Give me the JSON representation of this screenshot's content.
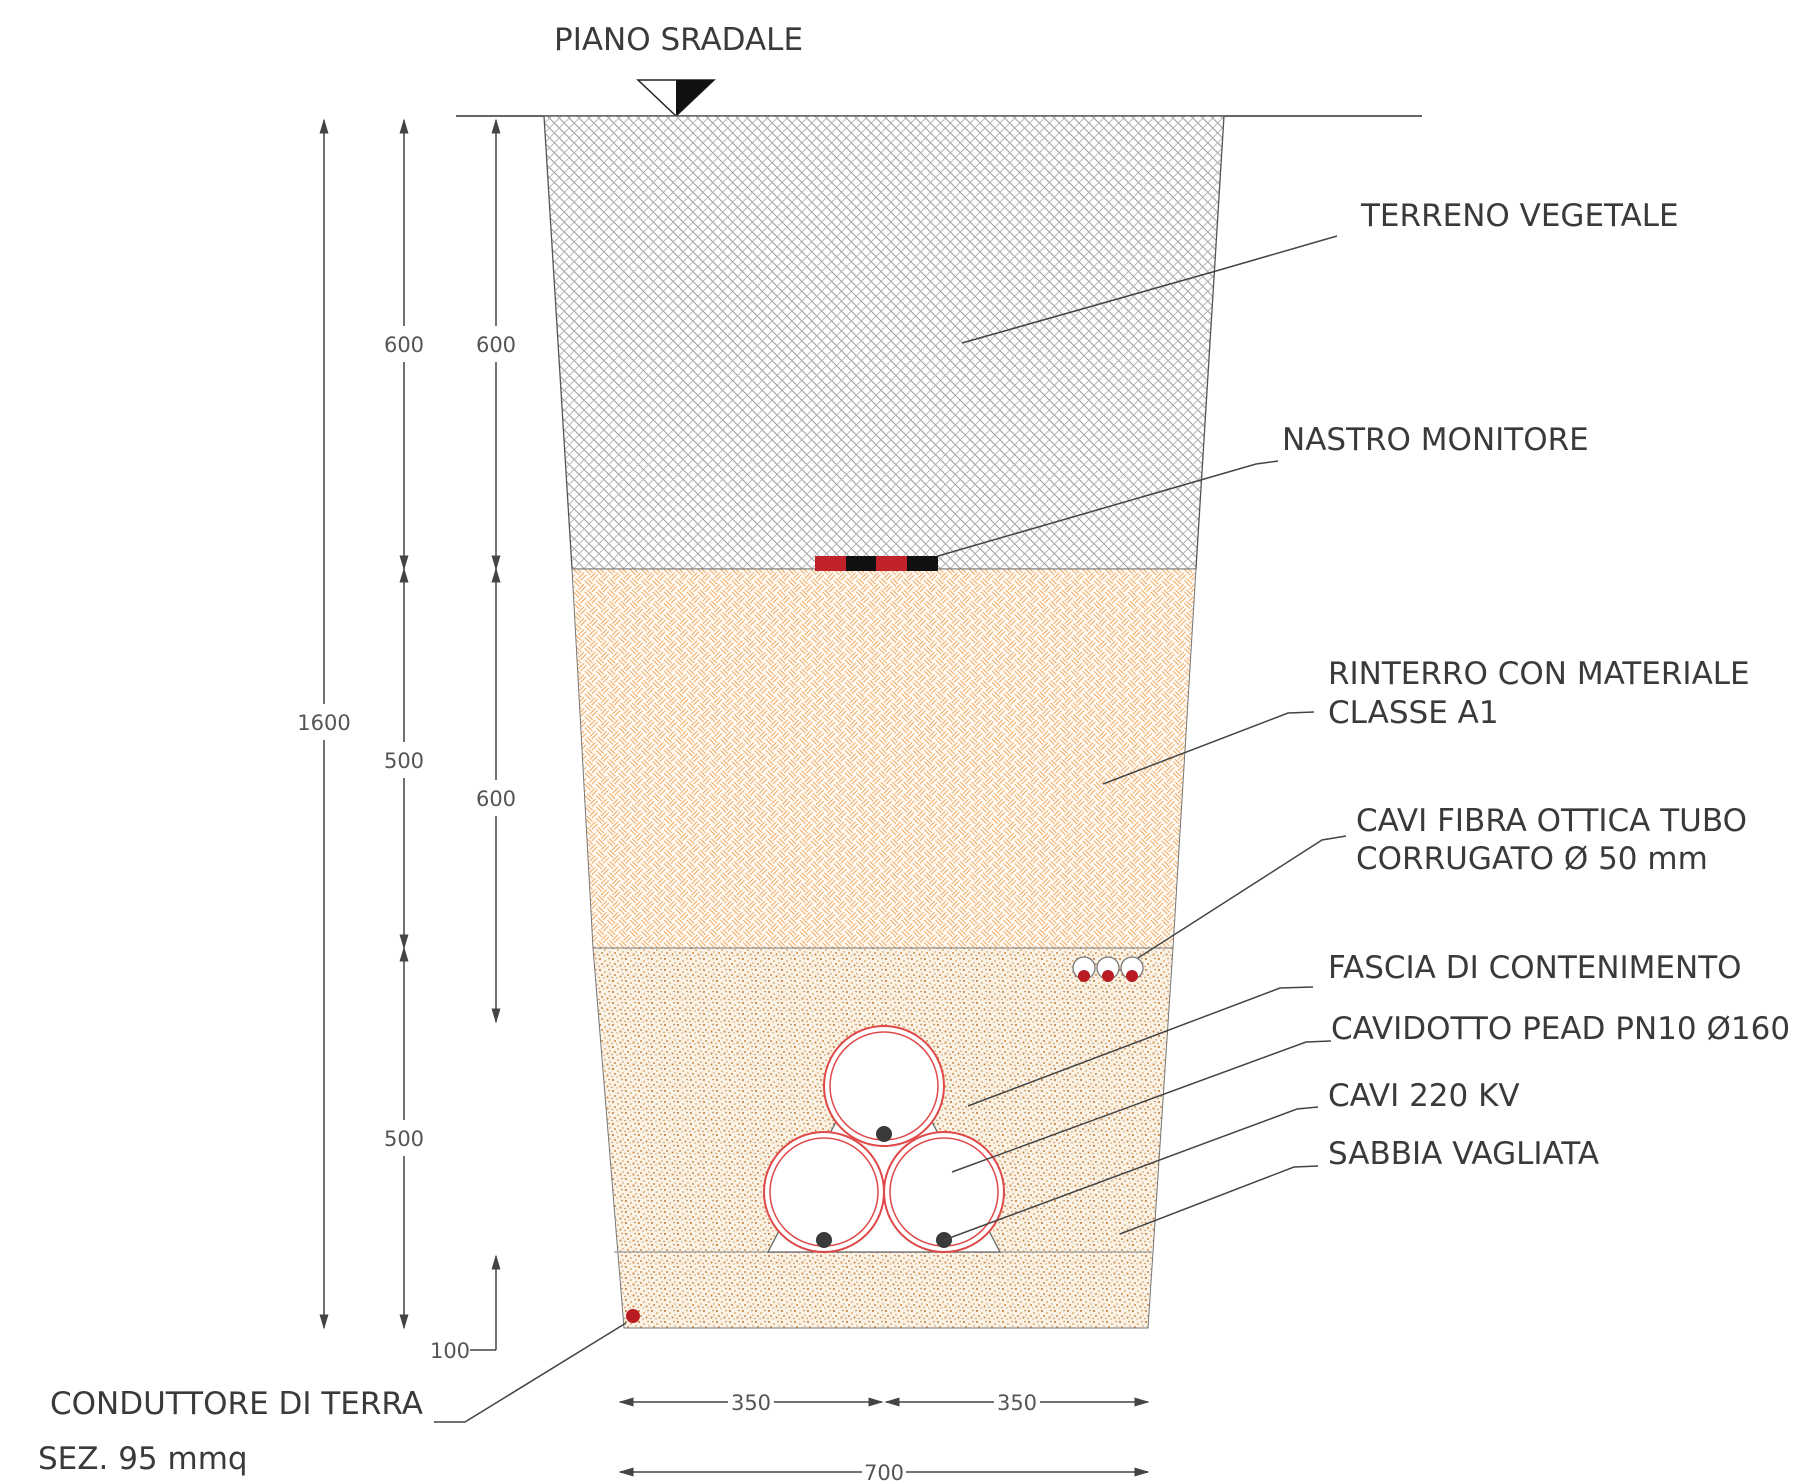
{
  "colors": {
    "soil_hatch": "#8a8a8a",
    "backfill_hatch": "#f0a860",
    "sand_dots": "#c98a4a",
    "sand_bg": "#faf1e6",
    "pipe_red": "#e04848",
    "cable_dark": "#3a3a3a",
    "tape_red": "#c0242a",
    "tape_black": "#111111",
    "text": "#3a3a3a"
  },
  "labels": {
    "road_level": "PIANO SRADALE",
    "topsoil": "TERRENO VEGETALE",
    "warning_tape": "NASTRO MONITORE",
    "backfill_line1": "RINTERRO CON MATERIALE",
    "backfill_line2": "CLASSE A1",
    "fiber_line1": "CAVI FIBRA OTTICA TUBO",
    "fiber_line2": "CORRUGATO Ø 50 mm",
    "containment": "FASCIA DI CONTENIMENTO",
    "conduit": "CAVIDOTTO PEAD PN10 Ø160",
    "cables": "CAVI 220 KV",
    "sand": "SABBIA VAGLIATA",
    "ground_line1": "CONDUTTORE DI TERRA",
    "ground_line2": "SEZ. 95 mmq"
  },
  "dimensions": {
    "total_depth": "1600",
    "topsoil_a": "600",
    "topsoil_b": "600",
    "backfill": "500",
    "backfill_b": "600",
    "sand": "500",
    "bedding": "100",
    "half_left": "350",
    "half_right": "350",
    "width": "700"
  },
  "icons": {
    "road_marker": "level-triangle-icon"
  }
}
